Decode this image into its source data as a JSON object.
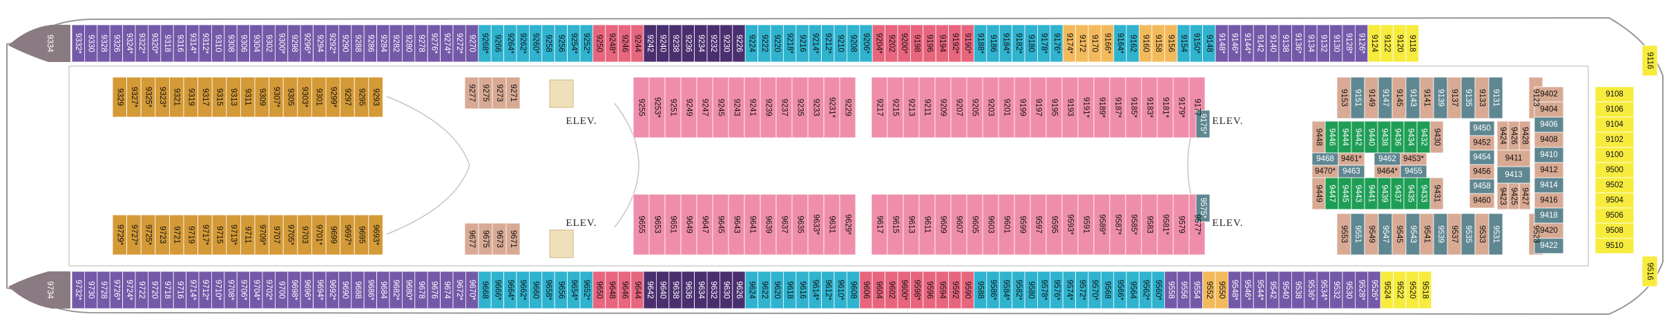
{
  "deck_plan": {
    "colors": {
      "purple": "#7459a8",
      "blue": "#2fb3cf",
      "red": "#e8657e",
      "darkpurple": "#4a2f6e",
      "yellow": "#f7ec3e",
      "orange": "#f3ba5c",
      "gold": "#d49a37",
      "tan": "#d8aa94",
      "teal": "#5f8791",
      "green": "#1e9e55",
      "pink": "#ef8eaa",
      "gray": "#8a7b82",
      "hull": "#a9a4a6"
    },
    "bow_labels": [
      "9334",
      "9734"
    ],
    "elevator_label": "ELEV.",
    "top_row": {
      "purple_a": [
        "9332*",
        "9330",
        "9328",
        "9326",
        "9324*",
        "9322*",
        "9320*",
        "9318",
        "9316",
        "9314*",
        "9312*",
        "9310",
        "9308",
        "9306",
        "9304",
        "9302",
        "9300*",
        "9298",
        "9296*",
        "9294",
        "9292*",
        "9290",
        "9288",
        "9286",
        "9284",
        "9282",
        "9280",
        "9278",
        "9276*",
        "9274*",
        "9272*",
        "9270"
      ],
      "blue_a": [
        "9268*",
        "9266",
        "9264*",
        "9262*",
        "9260*",
        "9258",
        "9256",
        "9254*",
        "9252*"
      ],
      "red_a": [
        "9250",
        "9248*",
        "9246",
        "9244"
      ],
      "dark_a": [
        "9242",
        "9240",
        "9238",
        "9236",
        "9234",
        "9232",
        "9230",
        "9226"
      ],
      "blue_b": [
        "9224",
        "9222",
        "9220",
        "9218*",
        "9216",
        "9214*",
        "9212*",
        "9210",
        "9208",
        "9206*"
      ],
      "red_b": [
        "9204*",
        "9202",
        "9200*",
        "9198",
        "9196",
        "9194",
        "9192*",
        "9190*"
      ],
      "blue_c": [
        "9188*",
        "9186",
        "9184*",
        "9182*",
        "9180",
        "9178*",
        "9176*"
      ],
      "orange_a": [
        "9174*",
        "9172",
        "9170",
        "9166*"
      ],
      "blue_d": [
        "9164*",
        "9162"
      ],
      "orange_b": [
        "9160",
        "9158",
        "9156"
      ],
      "blue_e": [
        "9154",
        "9150*",
        "9148"
      ],
      "purple_b": [
        "9148*",
        "9146*",
        "9144*",
        "9142",
        "9140",
        "9138",
        "9136*",
        "9134",
        "9132",
        "9130",
        "9128*",
        "9126*"
      ],
      "yellow_a": [
        "9124",
        "9122",
        "9120",
        "9118"
      ]
    },
    "bottom_row": {
      "purple_a": [
        "9732*",
        "9730",
        "9728",
        "9726*",
        "9724*",
        "9722",
        "9720",
        "9718",
        "9716",
        "9714*",
        "9712*",
        "9710*",
        "9708*",
        "9706*",
        "9704*",
        "9702*",
        "9700",
        "9698*",
        "9696*",
        "9694*",
        "9692*",
        "9690",
        "9688",
        "9686*",
        "9684",
        "9682*",
        "9680*",
        "9678",
        "9676",
        "9674",
        "9672*",
        "9670*"
      ],
      "blue_a": [
        "9668",
        "9666*",
        "9664*",
        "9662*",
        "9660",
        "9658*",
        "9656",
        "9654*",
        "9652*"
      ],
      "red_a": [
        "9650",
        "9648",
        "9646",
        "9644"
      ],
      "dark_a": [
        "9642",
        "9640",
        "9638",
        "9636",
        "9634",
        "9632",
        "9630",
        "9626"
      ],
      "blue_b": [
        "9624",
        "9622",
        "9620",
        "9618",
        "9616",
        "9614*",
        "9612*",
        "9610*",
        "9608"
      ],
      "red_b": [
        "9606",
        "9604",
        "9602",
        "9600*",
        "9598*",
        "9596",
        "9594",
        "9592",
        "9590"
      ],
      "blue_c": [
        "9588",
        "9586*",
        "9584*",
        "9582*",
        "9580",
        "9578*",
        "9576*",
        "9574*",
        "9572*",
        "9570*",
        "9568",
        "9566*",
        "9564",
        "9562*",
        "9560*"
      ],
      "purple_b": [
        "9558",
        "9556",
        "9554"
      ],
      "orange_a": [
        "9552",
        "9550"
      ],
      "purple_c": [
        "9548*",
        "9546*",
        "9544*",
        "9542",
        "9540",
        "9538",
        "9536*",
        "9534*",
        "9532",
        "9530",
        "9528*",
        "9526*"
      ],
      "yellow_a": [
        "9524",
        "9522",
        "9520",
        "9518"
      ]
    },
    "upper_inner": {
      "gold": [
        "9329",
        "9327*",
        "9325*",
        "9323*",
        "9321",
        "9319",
        "9317",
        "9315",
        "9313",
        "9311",
        "9309",
        "9307*",
        "9305",
        "9303*",
        "9301",
        "9299*",
        "9297",
        "9295",
        "9293"
      ],
      "tan": [
        "9277",
        "9275",
        "9273",
        "9271"
      ],
      "pink": [
        "9255",
        "9253*",
        "9251",
        "9249",
        "9247",
        "9245",
        "9243",
        "9241",
        "9239",
        "9237",
        "9235",
        "9233",
        "9231*",
        "9229",
        "9217",
        "9215",
        "9213",
        "9211",
        "9209",
        "9207",
        "9205",
        "9203",
        "9201",
        "9199",
        "9197",
        "9195",
        "9193",
        "9191*",
        "9189*",
        "9187*",
        "9185*",
        "9183*",
        "9181*",
        "9179*",
        "9177"
      ],
      "teal": "9175*"
    },
    "lower_inner": {
      "gold": [
        "9729*",
        "9727*",
        "9725*",
        "9723",
        "9721",
        "9719",
        "9717*",
        "9715",
        "9713*",
        "9711",
        "9709*",
        "9707",
        "9705*",
        "9703",
        "9701*",
        "9699",
        "9697*",
        "9695",
        "9693*"
      ],
      "tan": [
        "9677",
        "9675",
        "9673",
        "9671"
      ],
      "pink": [
        "9655",
        "9653",
        "9651",
        "9649",
        "9647",
        "9645",
        "9643",
        "9641",
        "9639",
        "9637",
        "9635",
        "9633*",
        "9631",
        "9629*",
        "9617",
        "9615",
        "9613",
        "9611",
        "9609",
        "9607",
        "9605",
        "9603",
        "9601",
        "9599",
        "9597",
        "9595",
        "9593*",
        "9591",
        "9589*",
        "9587*",
        "9585*",
        "9583",
        "9581*",
        "9579",
        "9577*"
      ],
      "teal": "9575*"
    },
    "fwd_upper": [
      "9153",
      "9151",
      "9149",
      "9147",
      "9145",
      "9143",
      "9141",
      "9139",
      "9137",
      "9135",
      "9133",
      "9131",
      "9123"
    ],
    "fwd_lower": [
      "9553",
      "9551",
      "9549",
      "9547",
      "9545",
      "9543",
      "9541",
      "9539",
      "9537",
      "9535",
      "9533",
      "9531",
      "9523"
    ],
    "suites": [
      "9448",
      "9446",
      "9444",
      "9442",
      "9440",
      "9438",
      "9436",
      "9434",
      "9432",
      "9430",
      "9468",
      "9461*",
      "9462",
      "9453*",
      "9470*",
      "9463",
      "9464*",
      "9455",
      "9449",
      "9447",
      "9445",
      "9443",
      "9441",
      "9439",
      "9437",
      "9435",
      "9433",
      "9431",
      "9450",
      "9452",
      "9454",
      "9456",
      "9458",
      "9460",
      "9424",
      "9426",
      "9428",
      "9411",
      "9413",
      "9423",
      "9425",
      "9427",
      "9402",
      "9404",
      "9406",
      "9408",
      "9410",
      "9412",
      "9414",
      "9416",
      "9418",
      "9420",
      "9422"
    ],
    "bow_yellow": [
      "9108",
      "9106",
      "9104",
      "9102",
      "9100",
      "9500",
      "9502",
      "9504",
      "9506",
      "9508",
      "9510"
    ],
    "bow_top": [
      "9116"
    ],
    "bow_bottom": [
      "9516"
    ]
  }
}
